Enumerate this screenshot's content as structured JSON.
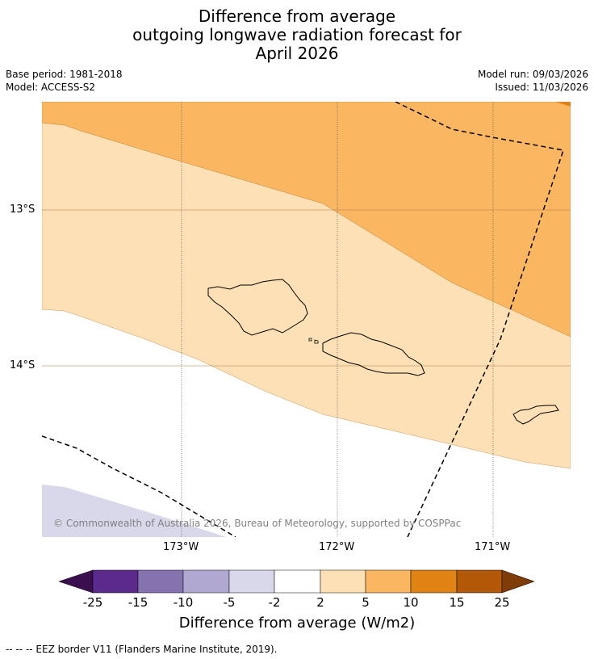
{
  "title": {
    "line1": "Difference from average",
    "line2": "outgoing longwave radiation forecast for",
    "line3": "April 2026"
  },
  "meta": {
    "base_period": "Base period: 1981-2018",
    "model": "Model: ACCESS-S2",
    "model_run": "Model run: 09/03/2026",
    "issued": "Issued: 11/03/2026"
  },
  "axes": {
    "lat_labels": [
      "13°S",
      "14°S"
    ],
    "lon_labels": [
      "173°W",
      "172°W",
      "171°W"
    ]
  },
  "copyright": "© Commonwealth of Australia 2026, Bureau of Meteorology, supported by COSPPac",
  "colorbar": {
    "title": "Difference from average (W/m2)",
    "tick_labels": [
      "-25",
      "-15",
      "-10",
      "-5",
      "-2",
      "2",
      "5",
      "10",
      "15",
      "25"
    ],
    "colors": [
      "#3b0f4f",
      "#5b2a8c",
      "#8573b0",
      "#b1a8d2",
      "#d8d8ea",
      "#ffffff",
      "#fde0b5",
      "#fbb662",
      "#e08214",
      "#b35806",
      "#7f3b08"
    ]
  },
  "footnote": "--  --  -- EEZ border V11 (Flanders Marine Institute, 2019)."
}
